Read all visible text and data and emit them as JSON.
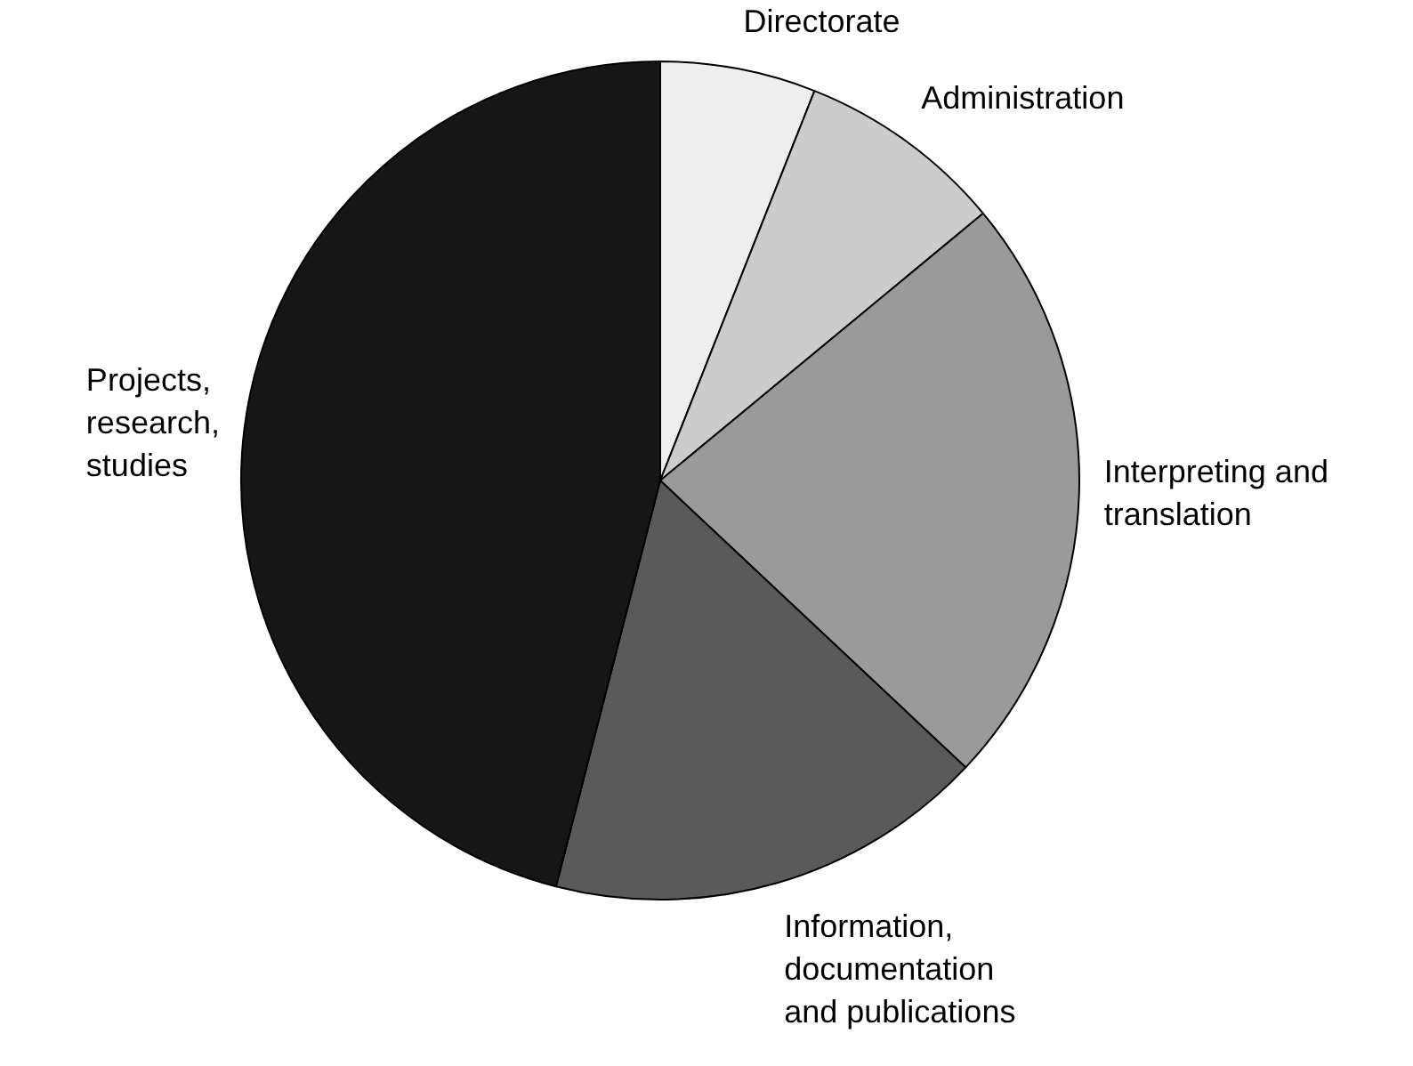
{
  "chart_data": {
    "type": "pie",
    "categories": [
      "Directorate",
      "Administration",
      "Interpreting and translation",
      "Information, documentation and publications",
      "Projects, research, studies"
    ],
    "values": [
      6,
      8,
      23,
      17,
      46
    ],
    "colors": [
      "#eeeeee",
      "#cccccc",
      "#9a9a9a",
      "#5a5a5a",
      "#161616"
    ],
    "legend": false
  }
}
